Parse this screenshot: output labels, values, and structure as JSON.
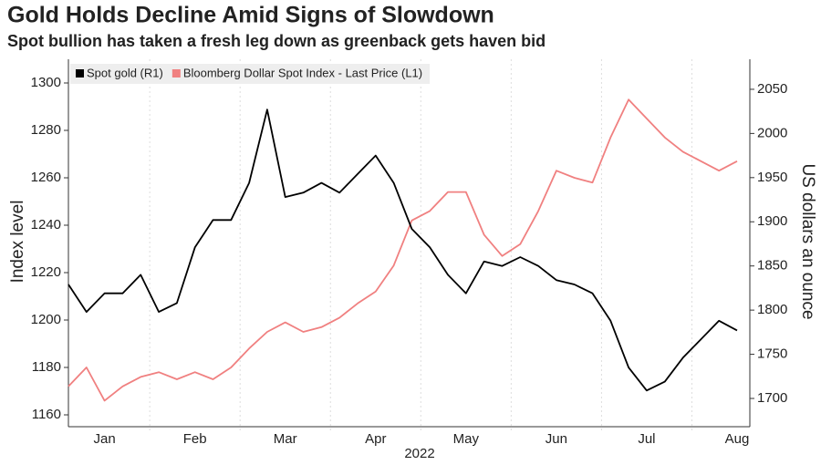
{
  "chart_data": {
    "type": "line",
    "title": "Gold Holds Decline Amid Signs of Slowdown",
    "subtitle": "Spot bullion has taken a fresh leg down as greenback gets haven bid",
    "x_label": "2022",
    "y_label": "Index level",
    "y2_label": "US dollars an ounce",
    "categories": [
      null,
      null,
      "Jan",
      null,
      null,
      null,
      null,
      "Feb",
      null,
      null,
      null,
      null,
      "Mar",
      null,
      null,
      null,
      null,
      "Apr",
      null,
      null,
      null,
      null,
      "May",
      null,
      null,
      null,
      null,
      "Jun",
      null,
      null,
      null,
      null,
      "Jul",
      null,
      null,
      null,
      null,
      "Aug"
    ],
    "series": [
      {
        "name": "Spot gold (R1)",
        "color": "#000000",
        "axis": "y2",
        "values": [
          1829,
          1798,
          1819,
          1819,
          1840,
          1798,
          1808,
          1871,
          1902,
          1902,
          1944,
          2027,
          1928,
          1933,
          1944,
          1933,
          1954,
          1975,
          1944,
          1892,
          1871,
          1840,
          1819,
          1855,
          1850,
          1860,
          1850,
          1834,
          1829,
          1819,
          1788,
          1735,
          1709,
          1719,
          1746,
          1767,
          1788,
          1777
        ]
      },
      {
        "name": "Bloomberg Dollar Spot Index - Last Price (L1)",
        "color": "#f08080",
        "values": [
          1172,
          1180,
          1166,
          1172,
          1176,
          1178,
          1175,
          1178,
          1175,
          1180,
          1188,
          1195,
          1199,
          1195,
          1197,
          1201,
          1207,
          1212,
          1223,
          1242,
          1246,
          1254,
          1254,
          1236,
          1227,
          1232,
          1246,
          1263,
          1260,
          1258,
          1277,
          1293,
          1285,
          1277,
          1271,
          1267,
          1263,
          1267
        ]
      }
    ],
    "ylim": [
      1155,
      1310
    ],
    "yticks": [
      1160,
      1180,
      1200,
      1220,
      1240,
      1260,
      1280,
      1300
    ],
    "y2lim": [
      1668,
      2084
    ],
    "y2ticks": [
      1700,
      1750,
      1800,
      1850,
      1900,
      1950,
      2000,
      2050
    ],
    "legend": "upper left"
  }
}
